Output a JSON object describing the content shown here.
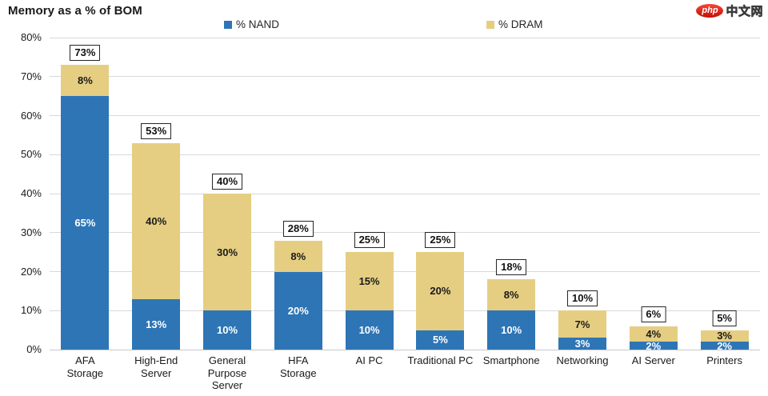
{
  "header": {
    "title": "Memory as a % of BOM",
    "logo": {
      "badge_text": "php",
      "site_text": "中文网",
      "badge_color": "#d6150a"
    }
  },
  "chart_data": {
    "type": "bar",
    "stacked": true,
    "title": "Memory as a % of BOM",
    "categories": [
      "AFA Storage",
      "High-End Server",
      "General Purpose Server",
      "HFA Storage",
      "AI PC",
      "Traditional PC",
      "Smartphone",
      "Networking",
      "AI Server",
      "Printers"
    ],
    "category_lines": [
      [
        "AFA",
        "Storage"
      ],
      [
        "High-End",
        "Server"
      ],
      [
        "General",
        "Purpose",
        "Server"
      ],
      [
        "HFA",
        "Storage"
      ],
      [
        "AI PC"
      ],
      [
        "Traditional PC"
      ],
      [
        "Smartphone"
      ],
      [
        "Networking"
      ],
      [
        "AI Server"
      ],
      [
        "Printers"
      ]
    ],
    "series": [
      {
        "name": "% NAND",
        "color": "#2E75B6",
        "label_color": "#ffffff",
        "values": [
          65,
          13,
          10,
          20,
          10,
          5,
          10,
          3,
          2,
          2
        ],
        "labels": [
          "65%",
          "13%",
          "10%",
          "20%",
          "10%",
          "5%",
          "10%",
          "3%",
          "2%",
          "2%"
        ]
      },
      {
        "name": "% DRAM",
        "color": "#E5CE82",
        "label_color": "#1a1a1a",
        "values": [
          8,
          40,
          30,
          8,
          15,
          20,
          8,
          7,
          4,
          3
        ],
        "labels": [
          "8%",
          "40%",
          "30%",
          "8%",
          "15%",
          "20%",
          "8%",
          "7%",
          "4%",
          "3%"
        ]
      }
    ],
    "totals": [
      73,
      53,
      40,
      28,
      25,
      25,
      18,
      10,
      6,
      5
    ],
    "total_labels": [
      "73%",
      "53%",
      "40%",
      "28%",
      "25%",
      "25%",
      "18%",
      "10%",
      "6%",
      "5%"
    ],
    "y_ticks": [
      "0%",
      "10%",
      "20%",
      "30%",
      "40%",
      "50%",
      "60%",
      "70%",
      "80%"
    ],
    "y_tick_values": [
      0,
      10,
      20,
      30,
      40,
      50,
      60,
      70,
      80
    ],
    "ylim": [
      0,
      80
    ],
    "grid": true,
    "legend_position": "top",
    "xlabel": "",
    "ylabel": ""
  }
}
